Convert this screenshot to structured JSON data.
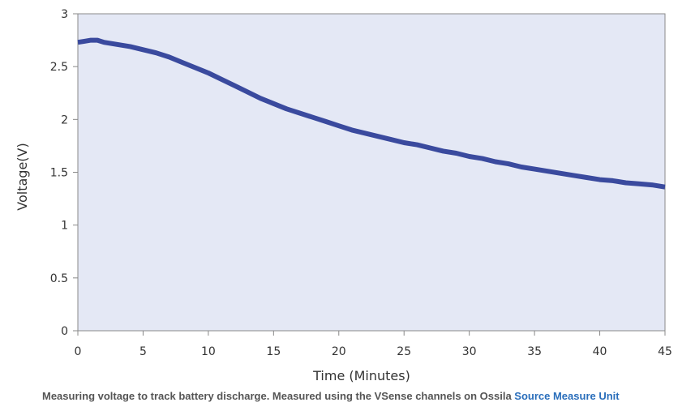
{
  "chart_data": {
    "type": "line",
    "title": "",
    "xlabel": "Time (Minutes)",
    "ylabel": "Voltage(V)",
    "xlim": [
      0,
      45
    ],
    "ylim": [
      0,
      3
    ],
    "x_ticks": [
      "0",
      "5",
      "10",
      "15",
      "20",
      "25",
      "30",
      "35",
      "40",
      "45"
    ],
    "y_ticks": [
      "0",
      "0.5",
      "1",
      "1.5",
      "2",
      "2.5",
      "3"
    ],
    "grid": false,
    "background_color": "#e4e8f5",
    "series": [
      {
        "color": "#3a4a9e",
        "x": [
          0,
          0.5,
          1,
          1.5,
          2,
          3,
          4,
          5,
          6,
          7,
          8,
          9,
          10,
          11,
          12,
          13,
          14,
          15,
          16,
          17,
          18,
          19,
          20,
          21,
          22,
          23,
          24,
          25,
          26,
          27,
          28,
          29,
          30,
          31,
          32,
          33,
          34,
          35,
          36,
          37,
          38,
          39,
          40,
          41,
          42,
          43,
          44,
          45
        ],
        "y": [
          2.73,
          2.74,
          2.75,
          2.75,
          2.73,
          2.71,
          2.69,
          2.66,
          2.63,
          2.59,
          2.54,
          2.49,
          2.44,
          2.38,
          2.32,
          2.26,
          2.2,
          2.15,
          2.1,
          2.06,
          2.02,
          1.98,
          1.94,
          1.9,
          1.87,
          1.84,
          1.81,
          1.78,
          1.76,
          1.73,
          1.7,
          1.68,
          1.65,
          1.63,
          1.6,
          1.58,
          1.55,
          1.53,
          1.51,
          1.49,
          1.47,
          1.45,
          1.43,
          1.42,
          1.4,
          1.39,
          1.38,
          1.36
        ]
      }
    ]
  },
  "caption": {
    "text": "Measuring voltage to track battery discharge. Measured using the VSense channels on Ossila ",
    "link_text": "Source Measure Unit",
    "link_color": "#2a6ebb"
  }
}
